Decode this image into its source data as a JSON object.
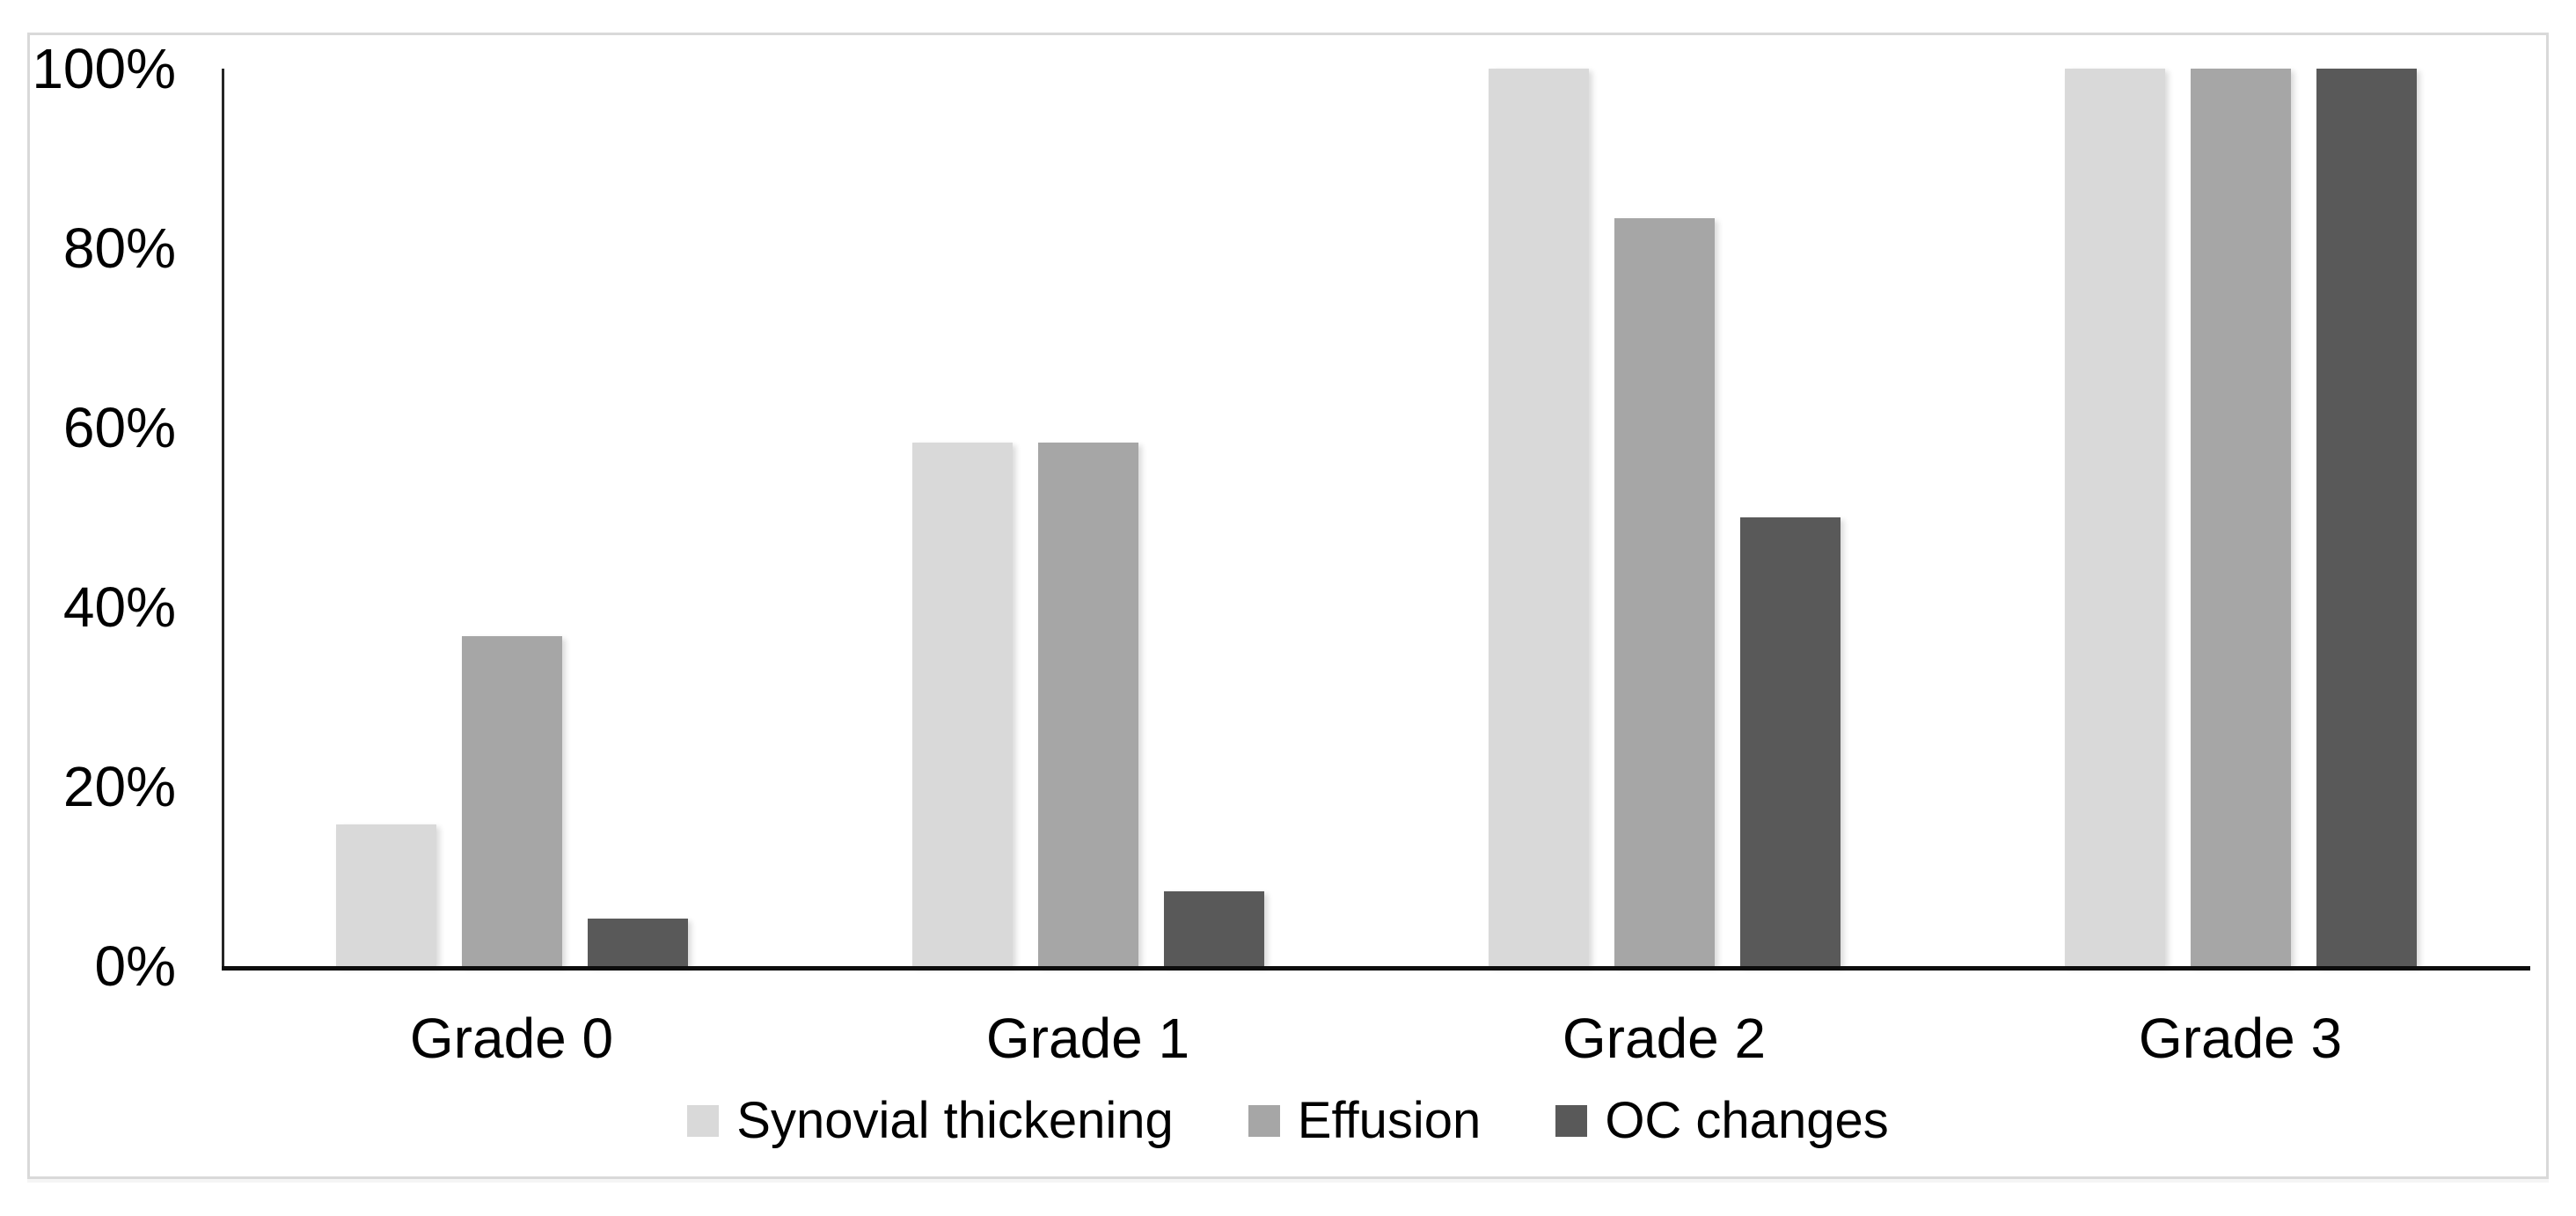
{
  "figure": {
    "background_color": "#ffffff",
    "frame_border_color": "#d9d9d9",
    "axis_color": "#262626",
    "baseline_color": "#0d0d0d"
  },
  "chart_data": {
    "type": "bar",
    "title": "",
    "xlabel": "",
    "ylabel": "",
    "categories": [
      "Grade 0",
      "Grade 1",
      "Grade 2",
      "Grade 3"
    ],
    "series": [
      {
        "name": "Synovial thickening",
        "color": "#d9d9d9",
        "values": [
          15.8,
          58.3,
          100,
          100
        ]
      },
      {
        "name": "Effusion",
        "color": "#a6a6a6",
        "values": [
          36.8,
          58.3,
          83.3,
          100
        ]
      },
      {
        "name": "OC changes",
        "color": "#595959",
        "values": [
          5.3,
          8.3,
          50,
          100
        ]
      }
    ],
    "ylim": [
      0,
      100
    ],
    "y_tick_values": [
      0,
      20,
      40,
      60,
      80,
      100
    ],
    "y_tick_labels": [
      "0%",
      "20%",
      "40%",
      "60%",
      "80%",
      "100%"
    ],
    "grid": false,
    "legend_position": "bottom"
  }
}
